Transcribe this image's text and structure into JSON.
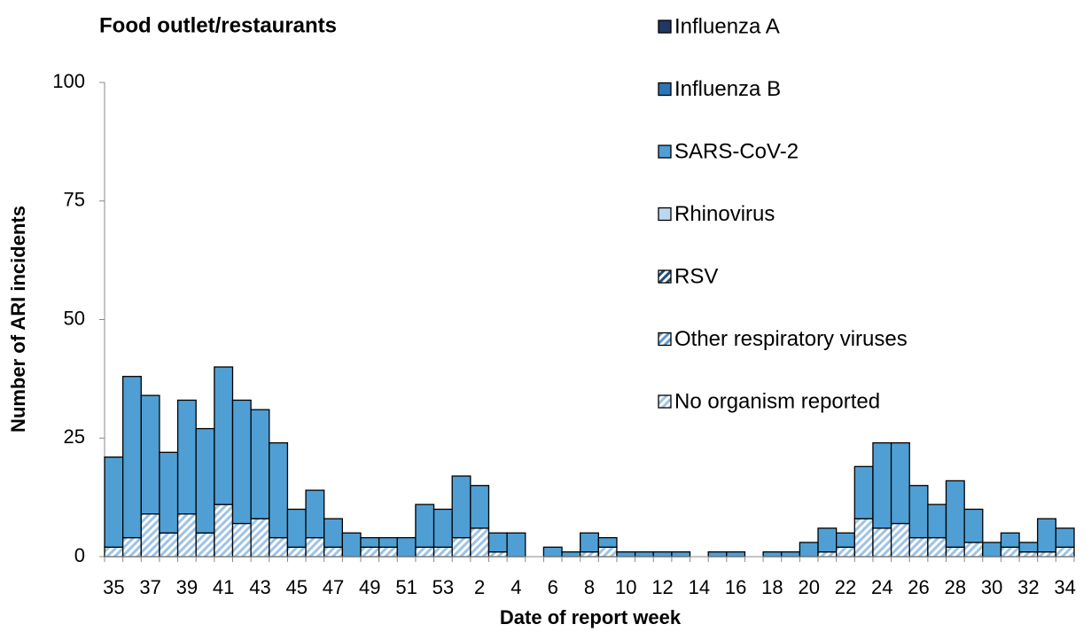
{
  "chart_data": {
    "type": "stacked_bar",
    "title": "Food outlet/restaurants",
    "y_label": "Number of ARI incidents",
    "x_label": "Date of report week",
    "categories": [
      "35",
      null,
      "37",
      null,
      "39",
      null,
      "41",
      null,
      "43",
      null,
      "45",
      null,
      "47",
      null,
      "49",
      null,
      "51",
      null,
      "53",
      null,
      "2",
      null,
      "4",
      null,
      "6",
      null,
      "8",
      null,
      "10",
      null,
      "12",
      null,
      "14",
      null,
      "16",
      null,
      "18",
      null,
      "20",
      null,
      "22",
      null,
      "24",
      null,
      "26",
      null,
      "28",
      null,
      "30",
      null,
      "32",
      null,
      "34"
    ],
    "ylim": [
      0,
      100
    ],
    "yticks": [
      0,
      25,
      50,
      75,
      100
    ],
    "legend": "right",
    "series": [
      {
        "name": "No organism reported",
        "color": "#9dc3e6",
        "hatch": true,
        "values": [
          2,
          4,
          9,
          5,
          9,
          5,
          11,
          7,
          8,
          4,
          2,
          4,
          2,
          0,
          2,
          2,
          0,
          2,
          2,
          4,
          6,
          1,
          0,
          0,
          0,
          0,
          1,
          2,
          0,
          0,
          0,
          0,
          0,
          0,
          0,
          0,
          0,
          0,
          0,
          1,
          2,
          8,
          6,
          7,
          4,
          4,
          2,
          3,
          0,
          2,
          1,
          1,
          2
        ]
      },
      {
        "name": "Other respiratory viruses",
        "color": "#5b9bd5",
        "hatch": true,
        "values": [
          0,
          0,
          0,
          0,
          0,
          0,
          0,
          0,
          0,
          0,
          0,
          0,
          0,
          0,
          0,
          0,
          0,
          0,
          0,
          0,
          0,
          0,
          0,
          0,
          0,
          0,
          0,
          0,
          0,
          0,
          0,
          0,
          0,
          0,
          0,
          0,
          0,
          0,
          0,
          0,
          0,
          0,
          0,
          0,
          0,
          0,
          0,
          0,
          0,
          0,
          0,
          0,
          0
        ]
      },
      {
        "name": "RSV",
        "color": "#1f4e79",
        "hatch": true,
        "values": [
          0,
          0,
          0,
          0,
          0,
          0,
          0,
          0,
          0,
          0,
          0,
          0,
          0,
          0,
          0,
          0,
          0,
          0,
          0,
          0,
          0,
          0,
          0,
          0,
          0,
          0,
          0,
          0,
          0,
          0,
          0,
          0,
          0,
          0,
          0,
          0,
          0,
          0,
          0,
          0,
          0,
          0,
          0,
          0,
          0,
          0,
          0,
          0,
          0,
          0,
          0,
          0,
          0
        ]
      },
      {
        "name": "Rhinovirus",
        "color": "#bdd7ee",
        "hatch": false,
        "values": [
          0,
          0,
          0,
          0,
          0,
          0,
          0,
          0,
          0,
          0,
          0,
          0,
          0,
          0,
          0,
          0,
          0,
          0,
          0,
          0,
          0,
          0,
          0,
          0,
          0,
          0,
          0,
          0,
          0,
          0,
          0,
          0,
          0,
          0,
          0,
          0,
          0,
          0,
          0,
          0,
          0,
          0,
          0,
          0,
          0,
          0,
          0,
          0,
          0,
          0,
          0,
          0,
          0
        ]
      },
      {
        "name": "SARS-CoV-2",
        "color": "#4f9fd4",
        "hatch": false,
        "values": [
          19,
          34,
          25,
          17,
          24,
          22,
          29,
          26,
          23,
          20,
          8,
          10,
          6,
          5,
          2,
          2,
          4,
          9,
          8,
          13,
          9,
          4,
          5,
          0,
          2,
          1,
          4,
          2,
          1,
          1,
          1,
          1,
          0,
          1,
          1,
          0,
          1,
          1,
          3,
          5,
          3,
          11,
          18,
          17,
          11,
          7,
          14,
          7,
          3,
          3,
          2,
          7,
          4
        ]
      },
      {
        "name": "Influenza B",
        "color": "#2e75b6",
        "hatch": false,
        "values": [
          0,
          0,
          0,
          0,
          0,
          0,
          0,
          0,
          0,
          0,
          0,
          0,
          0,
          0,
          0,
          0,
          0,
          0,
          0,
          0,
          0,
          0,
          0,
          0,
          0,
          0,
          0,
          0,
          0,
          0,
          0,
          0,
          0,
          0,
          0,
          0,
          0,
          0,
          0,
          0,
          0,
          0,
          0,
          0,
          0,
          0,
          0,
          0,
          0,
          0,
          0,
          0,
          0
        ]
      },
      {
        "name": "Influenza A",
        "color": "#1f3864",
        "hatch": false,
        "values": [
          0,
          0,
          0,
          0,
          0,
          0,
          0,
          0,
          0,
          0,
          0,
          0,
          0,
          0,
          0,
          0,
          0,
          0,
          0,
          0,
          0,
          0,
          0,
          0,
          0,
          0,
          0,
          0,
          0,
          0,
          0,
          0,
          0,
          0,
          0,
          0,
          0,
          0,
          0,
          0,
          0,
          0,
          0,
          0,
          0,
          0,
          0,
          0,
          0,
          0,
          0,
          0,
          0
        ]
      }
    ]
  }
}
